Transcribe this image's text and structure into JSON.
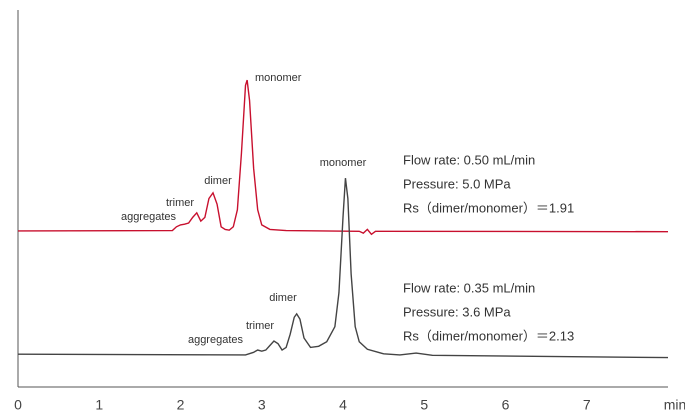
{
  "chart_data": {
    "type": "line",
    "x_label": "min",
    "xlim": [
      0,
      8
    ],
    "xticks": [
      0,
      1,
      2,
      3,
      4,
      5,
      6,
      7
    ],
    "ylim": [
      0,
      100
    ],
    "series": [
      {
        "color": "#c8102e",
        "x": [
          0,
          1.9,
          1.95,
          2.0,
          2.05,
          2.1,
          2.15,
          2.2,
          2.25,
          2.3,
          2.35,
          2.4,
          2.45,
          2.5,
          2.55,
          2.6,
          2.65,
          2.7,
          2.75,
          2.8,
          2.82,
          2.85,
          2.9,
          2.95,
          3.0,
          3.1,
          3.3,
          4.2,
          4.25,
          4.3,
          4.35,
          4.4,
          8.0
        ],
        "values": [
          41.4,
          41.5,
          42.5,
          43.0,
          43.2,
          43.5,
          45,
          46.2,
          44,
          45,
          50,
          51.5,
          48.5,
          42.5,
          41.8,
          41.6,
          42.5,
          47,
          62,
          80,
          81.4,
          76,
          58,
          47,
          43,
          41.8,
          41.5,
          41.3,
          40.8,
          41.8,
          40.5,
          41.3,
          41.2
        ],
        "peak_labels": [
          "aggregates",
          "trimer",
          "dimer",
          "monomer"
        ],
        "conditions": [
          "Flow rate: 0.50 mL/min",
          "Pressure: 5.0 MPa",
          "Rs（dimer/monomer）＝1.91"
        ]
      },
      {
        "color": "#444444",
        "x": [
          0,
          2.8,
          2.9,
          2.95,
          3.0,
          3.05,
          3.1,
          3.15,
          3.2,
          3.25,
          3.3,
          3.35,
          3.4,
          3.43,
          3.47,
          3.52,
          3.6,
          3.7,
          3.8,
          3.9,
          3.95,
          4.0,
          4.03,
          4.06,
          4.1,
          4.15,
          4.2,
          4.3,
          4.5,
          4.7,
          4.9,
          5.1,
          8.0
        ],
        "values": [
          8.7,
          8.5,
          9.2,
          9.8,
          9.5,
          9.8,
          11,
          12.2,
          11.5,
          9.8,
          10.5,
          14,
          18.5,
          19.4,
          18,
          13,
          10.5,
          10.8,
          12,
          16,
          25,
          45,
          55.4,
          50,
          30,
          16,
          12,
          10,
          8.8,
          8.5,
          9.0,
          8.4,
          7.8
        ],
        "peak_labels": [
          "aggregates",
          "trimer",
          "dimer",
          "monomer"
        ],
        "conditions": [
          "Flow rate: 0.35 mL/min",
          "Pressure: 3.6 MPa",
          "Rs（dimer/monomer）＝2.13"
        ]
      }
    ]
  }
}
